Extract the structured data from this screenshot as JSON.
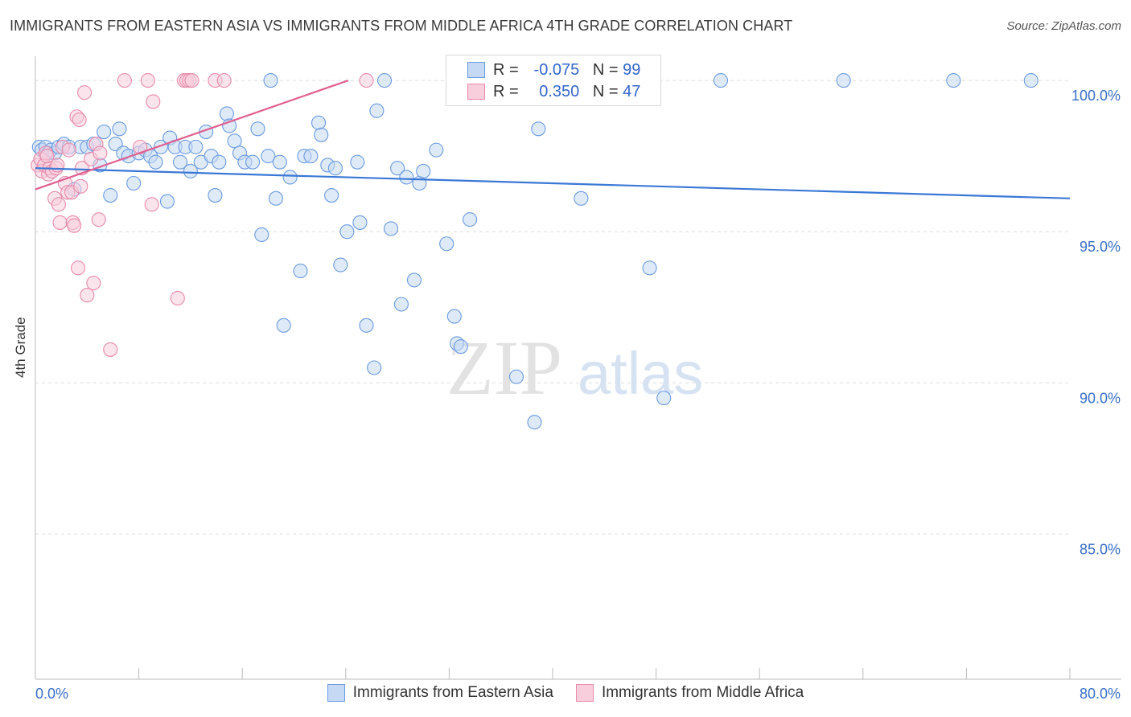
{
  "title": "IMMIGRANTS FROM EASTERN ASIA VS IMMIGRANTS FROM MIDDLE AFRICA 4TH GRADE CORRELATION CHART",
  "source": "Source: ZipAtlas.com",
  "watermark": {
    "zip": "ZIP",
    "atlas": "atlas"
  },
  "legend": {
    "r_label": "R =",
    "n_label": "N =",
    "rows": [
      {
        "r": "-0.075",
        "n": "99",
        "color": "#6a9be0",
        "fill": "#c5d9f4"
      },
      {
        "r": "0.350",
        "n": "47",
        "color": "#e88aaa",
        "fill": "#f8cddc"
      }
    ]
  },
  "bottom_legend": {
    "items": [
      {
        "label": "Immigrants from Eastern Asia",
        "color": "#6a9be0",
        "fill": "#c5d9f4"
      },
      {
        "label": "Immigrants from Middle Africa",
        "color": "#e88aaa",
        "fill": "#f8cddc"
      }
    ]
  },
  "chart_data": {
    "type": "scatter",
    "title": "IMMIGRANTS FROM EASTERN ASIA VS IMMIGRANTS FROM MIDDLE AFRICA 4TH GRADE CORRELATION CHART",
    "xlabel": "",
    "ylabel": "4th Grade",
    "xlim": [
      0,
      80
    ],
    "ylim": [
      80.2,
      100.8
    ],
    "x_tick_labels": [
      "0.0%",
      "80.0%"
    ],
    "y_ticks": [
      100,
      95,
      90,
      85
    ],
    "y_tick_labels": [
      "100.0%",
      "95.0%",
      "90.0%",
      "85.0%"
    ],
    "grid": "horizontal-dashed",
    "legend_position": "top-center",
    "series": [
      {
        "name": "Immigrants from Eastern Asia",
        "color": "#3a78d6",
        "trend": [
          [
            0,
            97.1
          ],
          [
            80,
            96.1
          ]
        ],
        "points": [
          [
            0.3,
            97.8
          ],
          [
            0.5,
            97.7
          ],
          [
            0.8,
            97.8
          ],
          [
            1.0,
            97.6
          ],
          [
            1.2,
            97.7
          ],
          [
            1.5,
            97.6
          ],
          [
            1.8,
            97.8
          ],
          [
            2.2,
            97.9
          ],
          [
            2.6,
            97.8
          ],
          [
            3.0,
            96.4
          ],
          [
            3.5,
            97.8
          ],
          [
            4.0,
            97.8
          ],
          [
            4.5,
            97.9
          ],
          [
            5.0,
            97.2
          ],
          [
            5.3,
            98.3
          ],
          [
            5.8,
            96.2
          ],
          [
            6.2,
            97.9
          ],
          [
            6.5,
            98.4
          ],
          [
            6.8,
            97.6
          ],
          [
            7.2,
            97.5
          ],
          [
            7.6,
            96.6
          ],
          [
            8.0,
            97.6
          ],
          [
            8.5,
            97.7
          ],
          [
            8.9,
            97.5
          ],
          [
            9.3,
            97.3
          ],
          [
            9.7,
            97.8
          ],
          [
            10.2,
            96.0
          ],
          [
            10.4,
            98.1
          ],
          [
            10.8,
            97.8
          ],
          [
            11.2,
            97.3
          ],
          [
            11.6,
            97.8
          ],
          [
            12.0,
            97.0
          ],
          [
            12.4,
            97.8
          ],
          [
            12.8,
            97.3
          ],
          [
            13.2,
            98.3
          ],
          [
            13.6,
            97.5
          ],
          [
            13.9,
            96.2
          ],
          [
            14.2,
            97.3
          ],
          [
            14.8,
            98.9
          ],
          [
            15.0,
            98.5
          ],
          [
            15.4,
            98.0
          ],
          [
            15.8,
            97.6
          ],
          [
            16.2,
            97.3
          ],
          [
            16.8,
            97.3
          ],
          [
            17.2,
            98.4
          ],
          [
            17.5,
            94.9
          ],
          [
            18.0,
            97.5
          ],
          [
            18.6,
            96.1
          ],
          [
            18.9,
            97.3
          ],
          [
            19.2,
            91.9
          ],
          [
            19.7,
            96.8
          ],
          [
            20.5,
            93.7
          ],
          [
            20.8,
            97.5
          ],
          [
            21.3,
            97.5
          ],
          [
            21.9,
            98.6
          ],
          [
            22.1,
            98.2
          ],
          [
            22.6,
            97.2
          ],
          [
            22.9,
            96.2
          ],
          [
            23.2,
            97.1
          ],
          [
            23.6,
            93.9
          ],
          [
            24.1,
            95.0
          ],
          [
            24.9,
            97.3
          ],
          [
            25.1,
            95.3
          ],
          [
            25.6,
            91.9
          ],
          [
            26.2,
            90.5
          ],
          [
            26.4,
            99.0
          ],
          [
            27.0,
            100.0
          ],
          [
            27.5,
            95.1
          ],
          [
            28.0,
            97.1
          ],
          [
            28.3,
            92.6
          ],
          [
            28.7,
            96.8
          ],
          [
            29.3,
            93.4
          ],
          [
            29.7,
            96.6
          ],
          [
            30.0,
            97.0
          ],
          [
            31.0,
            97.7
          ],
          [
            31.8,
            94.6
          ],
          [
            32.4,
            92.2
          ],
          [
            32.6,
            91.3
          ],
          [
            32.9,
            91.2
          ],
          [
            33.6,
            95.4
          ],
          [
            35.4,
            100.0
          ],
          [
            36.0,
            100.0
          ],
          [
            36.4,
            100.0
          ],
          [
            37.2,
            90.2
          ],
          [
            38.6,
            88.7
          ],
          [
            38.9,
            98.4
          ],
          [
            39.0,
            100.0
          ],
          [
            42.2,
            96.1
          ],
          [
            43.0,
            100.0
          ],
          [
            45.0,
            100.0
          ],
          [
            47.5,
            93.8
          ],
          [
            48.6,
            89.5
          ],
          [
            53.0,
            100.0
          ],
          [
            62.5,
            100.0
          ],
          [
            71.0,
            100.0
          ],
          [
            77.0,
            100.0
          ],
          [
            18.2,
            100.0
          ],
          [
            37.0,
            100.0
          ],
          [
            40.5,
            100.0
          ]
        ]
      },
      {
        "name": "Immigrants from Middle Africa",
        "color": "#e06090",
        "trend": [
          [
            0,
            96.4
          ],
          [
            24.2,
            100.0
          ]
        ],
        "points": [
          [
            0.2,
            97.2
          ],
          [
            0.4,
            97.4
          ],
          [
            0.5,
            97.0
          ],
          [
            0.7,
            97.2
          ],
          [
            0.8,
            97.6
          ],
          [
            1.0,
            96.9
          ],
          [
            1.1,
            97.1
          ],
          [
            1.3,
            97.0
          ],
          [
            1.5,
            96.1
          ],
          [
            1.6,
            97.1
          ],
          [
            1.8,
            95.9
          ],
          [
            1.9,
            95.3
          ],
          [
            2.1,
            97.8
          ],
          [
            2.3,
            96.6
          ],
          [
            2.5,
            96.3
          ],
          [
            2.6,
            97.7
          ],
          [
            2.8,
            96.3
          ],
          [
            2.9,
            95.3
          ],
          [
            3.0,
            95.2
          ],
          [
            3.2,
            98.8
          ],
          [
            3.3,
            93.8
          ],
          [
            3.4,
            98.7
          ],
          [
            3.5,
            96.5
          ],
          [
            3.6,
            97.1
          ],
          [
            3.8,
            99.6
          ],
          [
            4.0,
            92.9
          ],
          [
            4.3,
            97.4
          ],
          [
            4.5,
            93.3
          ],
          [
            4.7,
            97.9
          ],
          [
            4.9,
            95.4
          ],
          [
            5.0,
            97.6
          ],
          [
            5.8,
            91.1
          ],
          [
            6.9,
            100.0
          ],
          [
            8.1,
            97.8
          ],
          [
            8.7,
            100.0
          ],
          [
            9.0,
            95.9
          ],
          [
            9.1,
            99.3
          ],
          [
            11.0,
            92.8
          ],
          [
            11.5,
            100.0
          ],
          [
            11.7,
            100.0
          ],
          [
            11.9,
            100.0
          ],
          [
            12.1,
            100.0
          ],
          [
            13.9,
            100.0
          ],
          [
            14.6,
            100.0
          ],
          [
            25.6,
            100.0
          ],
          [
            0.9,
            97.5
          ],
          [
            1.7,
            97.2
          ]
        ]
      }
    ]
  }
}
